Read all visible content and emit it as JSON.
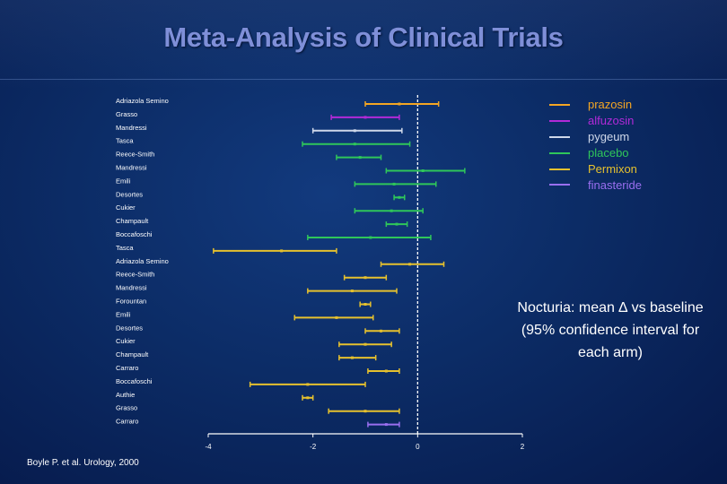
{
  "title": "Meta-Analysis of Clinical Trials",
  "legend": [
    {
      "label": "prazosin",
      "color": "#f5a623"
    },
    {
      "label": "alfuzosin",
      "color": "#b22ad8"
    },
    {
      "label": "pygeum",
      "color": "#cfd8ea"
    },
    {
      "label": "placebo",
      "color": "#2fc65a"
    },
    {
      "label": "Permixon",
      "color": "#e6c12e"
    },
    {
      "label": "finasteride",
      "color": "#9a6ff0"
    }
  ],
  "annotation_lines": [
    "Nocturia: mean ∆ vs baseline",
    "(95% confidence interval for",
    "each arm)"
  ],
  "citation": "Boyle P. et al. Urology, 2000",
  "chart_data": {
    "type": "forest",
    "title": "Meta-Analysis of Clinical Trials",
    "xlim": [
      -4,
      2
    ],
    "xticks": [
      "-4",
      "-2",
      "0",
      "2"
    ],
    "reference_line": 0,
    "studies": [
      {
        "label": "Adriazola Semino",
        "drug": "prazosin",
        "mean": -0.35,
        "lower": -1.0,
        "upper": 0.4
      },
      {
        "label": "Grasso",
        "drug": "alfuzosin",
        "mean": -1.0,
        "lower": -1.65,
        "upper": -0.35
      },
      {
        "label": "Mandressi",
        "drug": "pygeum",
        "mean": -1.2,
        "lower": -2.0,
        "upper": -0.3
      },
      {
        "label": "Tasca",
        "drug": "placebo",
        "mean": -1.2,
        "lower": -2.2,
        "upper": -0.15
      },
      {
        "label": "Reece-Smith",
        "drug": "placebo",
        "mean": -1.1,
        "lower": -1.55,
        "upper": -0.7
      },
      {
        "label": "Mandressi",
        "drug": "placebo",
        "mean": 0.1,
        "lower": -0.6,
        "upper": 0.9
      },
      {
        "label": "Emili",
        "drug": "placebo",
        "mean": -0.45,
        "lower": -1.2,
        "upper": 0.35
      },
      {
        "label": "Desortes",
        "drug": "placebo",
        "mean": -0.35,
        "lower": -0.45,
        "upper": -0.25
      },
      {
        "label": "Cukier",
        "drug": "placebo",
        "mean": -0.5,
        "lower": -1.2,
        "upper": 0.1
      },
      {
        "label": "Champault",
        "drug": "placebo",
        "mean": -0.4,
        "lower": -0.6,
        "upper": -0.2
      },
      {
        "label": "Boccafoschi",
        "drug": "placebo",
        "mean": -0.9,
        "lower": -2.1,
        "upper": 0.25
      },
      {
        "label": "Tasca",
        "drug": "Permixon",
        "mean": -2.6,
        "lower": -3.9,
        "upper": -1.55
      },
      {
        "label": "Adriazola Semino",
        "drug": "Permixon",
        "mean": -0.15,
        "lower": -0.7,
        "upper": 0.5
      },
      {
        "label": "Reece-Smith",
        "drug": "Permixon",
        "mean": -1.0,
        "lower": -1.4,
        "upper": -0.6
      },
      {
        "label": "Mandressi",
        "drug": "Permixon",
        "mean": -1.25,
        "lower": -2.1,
        "upper": -0.4
      },
      {
        "label": "Forountan",
        "drug": "Permixon",
        "mean": -1.0,
        "lower": -1.1,
        "upper": -0.9
      },
      {
        "label": "Emili",
        "drug": "Permixon",
        "mean": -1.55,
        "lower": -2.35,
        "upper": -0.85
      },
      {
        "label": "Desortes",
        "drug": "Permixon",
        "mean": -0.7,
        "lower": -1.0,
        "upper": -0.35
      },
      {
        "label": "Cukier",
        "drug": "Permixon",
        "mean": -1.0,
        "lower": -1.5,
        "upper": -0.5
      },
      {
        "label": "Champault",
        "drug": "Permixon",
        "mean": -1.25,
        "lower": -1.5,
        "upper": -0.8
      },
      {
        "label": "Carraro",
        "drug": "Permixon",
        "mean": -0.6,
        "lower": -0.95,
        "upper": -0.35
      },
      {
        "label": "Boccafoschi",
        "drug": "Permixon",
        "mean": -2.1,
        "lower": -3.2,
        "upper": -1.0
      },
      {
        "label": "Authie",
        "drug": "Permixon",
        "mean": -2.1,
        "lower": -2.2,
        "upper": -2.0
      },
      {
        "label": "Grasso",
        "drug": "Permixon",
        "mean": -1.0,
        "lower": -1.7,
        "upper": -0.35
      },
      {
        "label": "Carraro",
        "drug": "finasteride",
        "mean": -0.6,
        "lower": -0.95,
        "upper": -0.35
      }
    ]
  }
}
